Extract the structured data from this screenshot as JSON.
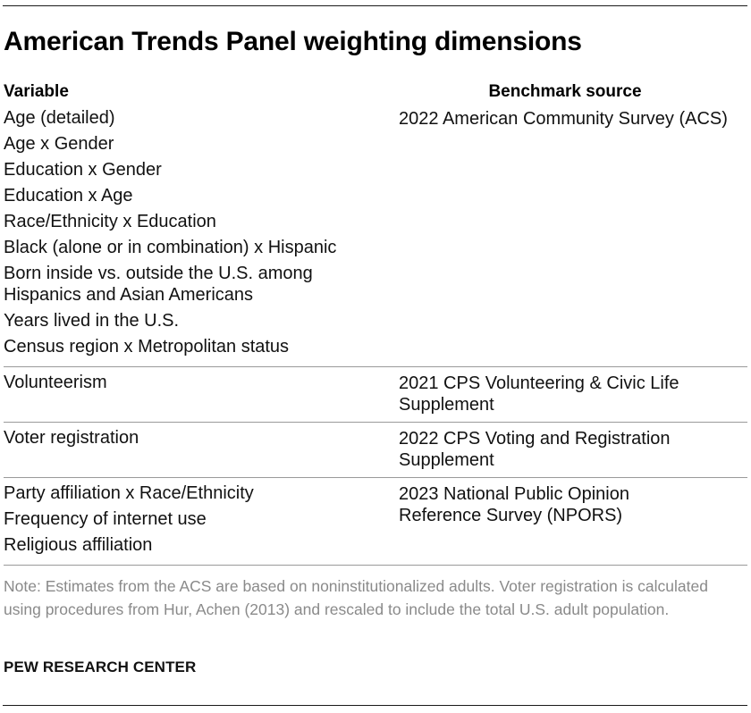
{
  "title": "American Trends Panel weighting dimensions",
  "headers": {
    "variable": "Variable",
    "benchmark": "Benchmark source"
  },
  "groups": [
    {
      "variables": [
        "Age (detailed)",
        "Age x Gender",
        "Education x Gender",
        "Education x Age",
        "Race/Ethnicity x Education",
        "Black (alone or in combination) x Hispanic",
        "Born inside vs. outside the U.S. among Hispanics and Asian Americans",
        "Years lived in the U.S.",
        "Census region x Metropolitan status"
      ],
      "source": "2022 American Community Survey (ACS)"
    },
    {
      "variables": [
        "Volunteerism"
      ],
      "source": "2021 CPS Volunteering & Civic Life Supplement"
    },
    {
      "variables": [
        "Voter registration"
      ],
      "source": "2022 CPS Voting and Registration Supplement"
    },
    {
      "variables": [
        "Party affiliation x Race/Ethnicity",
        "Frequency of internet use",
        "Religious affiliation"
      ],
      "source": "2023 National Public Opinion Reference Survey (NPORS)"
    }
  ],
  "note": "Note: Estimates from the ACS are based on noninstitutionalized adults. Voter registration is calculated using procedures from Hur, Achen (2013) and rescaled to include the total U.S. adult population.",
  "source_line": "PEW RESEARCH CENTER"
}
